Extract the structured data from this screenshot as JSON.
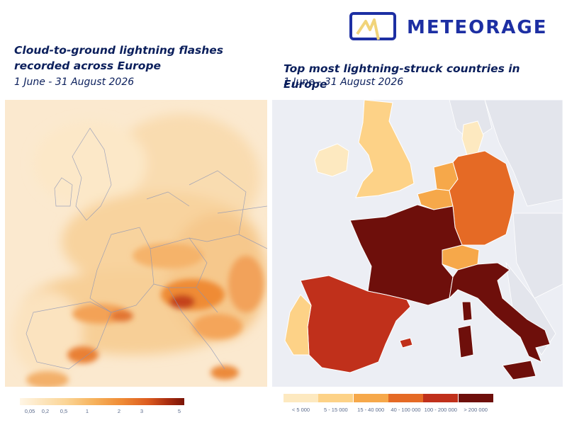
{
  "brand": {
    "name": "METEORAGE",
    "logo_color": "#1d2fa3",
    "logo_accent": "#f1d47a"
  },
  "left_panel": {
    "title_line1": "Cloud-to-ground lightning flashes",
    "title_line2": "recorded across Europe",
    "subtitle": "1 June - 31 August 2026",
    "legend_ticks": [
      "0,05",
      "0,2",
      "0,5",
      "1",
      "2",
      "3",
      "5"
    ],
    "legend_colors": [
      "#fff6e6",
      "#fde7c2",
      "#fbd596",
      "#f6b25c",
      "#ef8b35",
      "#dc5b1f",
      "#a92d10",
      "#7a1406"
    ]
  },
  "right_panel": {
    "title": "Top most lightning-struck countries in Europe",
    "subtitle": "1 June - 31 August 2026",
    "legend": [
      {
        "label": "< 5 000",
        "color": "#fde9c0"
      },
      {
        "label": "5 - 15 000",
        "color": "#fdd287"
      },
      {
        "label": "15 - 40 000",
        "color": "#f6a84a"
      },
      {
        "label": "40 - 100 000",
        "color": "#e56a25"
      },
      {
        "label": "100 - 200 000",
        "color": "#c0301b"
      },
      {
        "label": "> 200 000",
        "color": "#6e0f0b"
      }
    ],
    "countries": [
      {
        "name": "Ireland",
        "class": "< 5 000"
      },
      {
        "name": "United Kingdom",
        "class": "5 - 15 000"
      },
      {
        "name": "Netherlands",
        "class": "15 - 40 000"
      },
      {
        "name": "Belgium",
        "class": "15 - 40 000"
      },
      {
        "name": "Denmark",
        "class": "< 5 000"
      },
      {
        "name": "Germany",
        "class": "40 - 100 000"
      },
      {
        "name": "Switzerland",
        "class": "15 - 40 000"
      },
      {
        "name": "France",
        "class": "> 200 000"
      },
      {
        "name": "Italy",
        "class": "> 200 000"
      },
      {
        "name": "Spain",
        "class": "100 - 200 000"
      },
      {
        "name": "Portugal",
        "class": "5 - 15 000"
      }
    ],
    "background_land": "#e6e8ee",
    "background_sea": "#eceef4"
  }
}
